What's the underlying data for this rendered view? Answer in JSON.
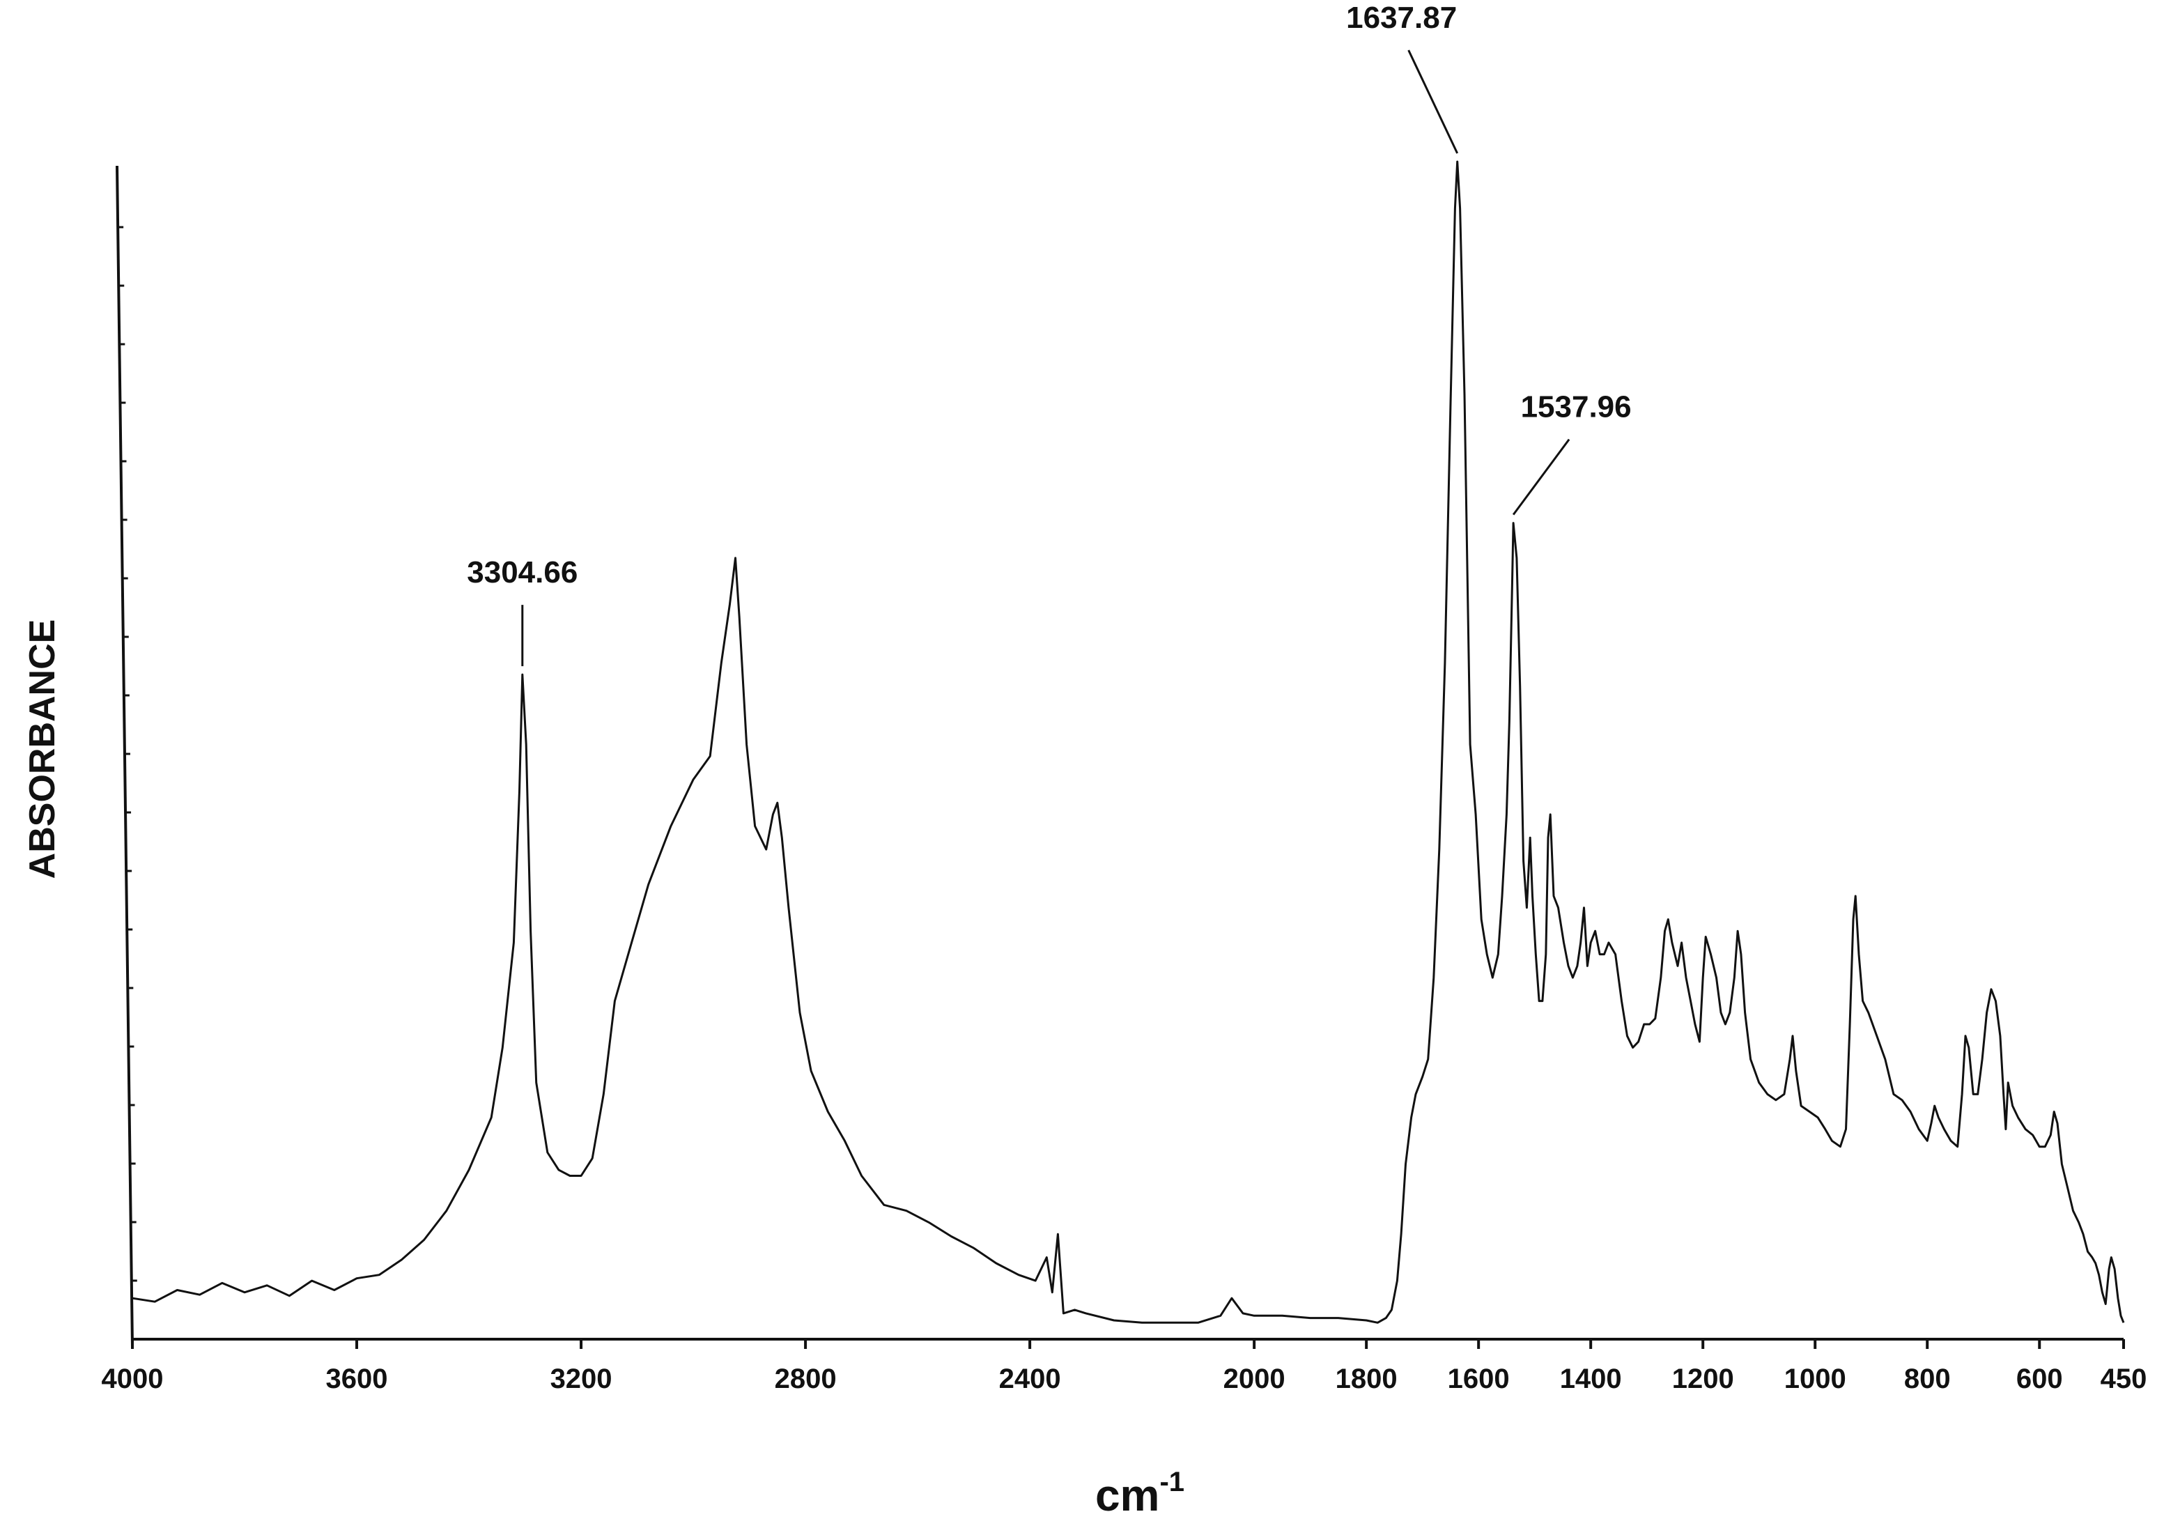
{
  "chart_data": {
    "type": "line",
    "title": "",
    "xlabel": "cm",
    "xlabel_superscript": "-1",
    "ylabel": "ABSORBANCE",
    "xlim": [
      4000,
      450
    ],
    "x_reversed": true,
    "ylim": [
      0,
      1
    ],
    "grid": false,
    "legend": "none",
    "line_color": "#111111",
    "x_ticks": [
      4000,
      3600,
      3200,
      2800,
      2400,
      2000,
      1800,
      1600,
      1400,
      1200,
      1000,
      800,
      600,
      450
    ],
    "x_tick_labels": [
      "4000",
      "3600",
      "3200",
      "2800",
      "2400",
      "2000",
      "1800",
      "1600",
      "1400",
      "1200",
      "1000",
      "800",
      "600",
      "450"
    ],
    "annotations": [
      {
        "text": "3304.66",
        "x": 3304.66,
        "y": 0.56
      },
      {
        "text": "1637.87",
        "x": 1637.87,
        "y": 1.0
      },
      {
        "text": "1537.96",
        "x": 1537.96,
        "y": 0.69
      }
    ],
    "series": [
      {
        "values": [
          [
            4000,
            0.025
          ],
          [
            3960,
            0.022
          ],
          [
            3920,
            0.032
          ],
          [
            3880,
            0.028
          ],
          [
            3840,
            0.038
          ],
          [
            3800,
            0.03
          ],
          [
            3760,
            0.036
          ],
          [
            3720,
            0.027
          ],
          [
            3680,
            0.04
          ],
          [
            3640,
            0.032
          ],
          [
            3600,
            0.042
          ],
          [
            3560,
            0.045
          ],
          [
            3520,
            0.058
          ],
          [
            3480,
            0.075
          ],
          [
            3440,
            0.1
          ],
          [
            3400,
            0.135
          ],
          [
            3360,
            0.18
          ],
          [
            3340,
            0.24
          ],
          [
            3320,
            0.33
          ],
          [
            3310,
            0.46
          ],
          [
            3304.66,
            0.56
          ],
          [
            3298,
            0.5
          ],
          [
            3290,
            0.34
          ],
          [
            3280,
            0.21
          ],
          [
            3260,
            0.15
          ],
          [
            3240,
            0.135
          ],
          [
            3220,
            0.13
          ],
          [
            3200,
            0.13
          ],
          [
            3180,
            0.145
          ],
          [
            3160,
            0.2
          ],
          [
            3140,
            0.28
          ],
          [
            3110,
            0.33
          ],
          [
            3080,
            0.38
          ],
          [
            3040,
            0.43
          ],
          [
            3000,
            0.47
          ],
          [
            2970,
            0.49
          ],
          [
            2950,
            0.57
          ],
          [
            2935,
            0.62
          ],
          [
            2925,
            0.66
          ],
          [
            2918,
            0.61
          ],
          [
            2905,
            0.5
          ],
          [
            2890,
            0.43
          ],
          [
            2870,
            0.41
          ],
          [
            2858,
            0.44
          ],
          [
            2850,
            0.45
          ],
          [
            2842,
            0.42
          ],
          [
            2830,
            0.36
          ],
          [
            2810,
            0.27
          ],
          [
            2790,
            0.22
          ],
          [
            2760,
            0.185
          ],
          [
            2730,
            0.16
          ],
          [
            2700,
            0.13
          ],
          [
            2660,
            0.105
          ],
          [
            2620,
            0.1
          ],
          [
            2580,
            0.09
          ],
          [
            2540,
            0.078
          ],
          [
            2500,
            0.068
          ],
          [
            2460,
            0.055
          ],
          [
            2420,
            0.045
          ],
          [
            2390,
            0.04
          ],
          [
            2370,
            0.06
          ],
          [
            2360,
            0.03
          ],
          [
            2350,
            0.08
          ],
          [
            2340,
            0.012
          ],
          [
            2320,
            0.015
          ],
          [
            2300,
            0.012
          ],
          [
            2250,
            0.006
          ],
          [
            2200,
            0.004
          ],
          [
            2150,
            0.004
          ],
          [
            2100,
            0.004
          ],
          [
            2060,
            0.01
          ],
          [
            2040,
            0.025
          ],
          [
            2020,
            0.012
          ],
          [
            2000,
            0.01
          ],
          [
            1950,
            0.01
          ],
          [
            1900,
            0.008
          ],
          [
            1850,
            0.008
          ],
          [
            1800,
            0.006
          ],
          [
            1780,
            0.004
          ],
          [
            1765,
            0.008
          ],
          [
            1755,
            0.015
          ],
          [
            1745,
            0.04
          ],
          [
            1738,
            0.08
          ],
          [
            1730,
            0.14
          ],
          [
            1720,
            0.18
          ],
          [
            1712,
            0.2
          ],
          [
            1700,
            0.215
          ],
          [
            1690,
            0.23
          ],
          [
            1680,
            0.3
          ],
          [
            1670,
            0.41
          ],
          [
            1660,
            0.57
          ],
          [
            1650,
            0.79
          ],
          [
            1642,
            0.96
          ],
          [
            1637.87,
            1.0
          ],
          [
            1633,
            0.96
          ],
          [
            1625,
            0.8
          ],
          [
            1615,
            0.5
          ],
          [
            1605,
            0.44
          ],
          [
            1595,
            0.35
          ],
          [
            1585,
            0.32
          ],
          [
            1575,
            0.3
          ],
          [
            1565,
            0.32
          ],
          [
            1558,
            0.37
          ],
          [
            1550,
            0.44
          ],
          [
            1545,
            0.52
          ],
          [
            1540,
            0.64
          ],
          [
            1537.96,
            0.69
          ],
          [
            1532,
            0.66
          ],
          [
            1526,
            0.55
          ],
          [
            1520,
            0.4
          ],
          [
            1514,
            0.36
          ],
          [
            1508,
            0.42
          ],
          [
            1504,
            0.37
          ],
          [
            1498,
            0.32
          ],
          [
            1492,
            0.28
          ],
          [
            1486,
            0.28
          ],
          [
            1480,
            0.32
          ],
          [
            1476,
            0.42
          ],
          [
            1472,
            0.44
          ],
          [
            1466,
            0.37
          ],
          [
            1458,
            0.36
          ],
          [
            1448,
            0.33
          ],
          [
            1440,
            0.31
          ],
          [
            1432,
            0.3
          ],
          [
            1424,
            0.31
          ],
          [
            1418,
            0.33
          ],
          [
            1412,
            0.36
          ],
          [
            1406,
            0.31
          ],
          [
            1400,
            0.33
          ],
          [
            1392,
            0.34
          ],
          [
            1384,
            0.32
          ],
          [
            1376,
            0.32
          ],
          [
            1368,
            0.33
          ],
          [
            1356,
            0.32
          ],
          [
            1345,
            0.28
          ],
          [
            1335,
            0.25
          ],
          [
            1325,
            0.24
          ],
          [
            1315,
            0.245
          ],
          [
            1305,
            0.26
          ],
          [
            1295,
            0.26
          ],
          [
            1285,
            0.265
          ],
          [
            1275,
            0.3
          ],
          [
            1268,
            0.34
          ],
          [
            1262,
            0.35
          ],
          [
            1255,
            0.33
          ],
          [
            1245,
            0.31
          ],
          [
            1238,
            0.33
          ],
          [
            1230,
            0.3
          ],
          [
            1222,
            0.28
          ],
          [
            1214,
            0.26
          ],
          [
            1206,
            0.245
          ],
          [
            1200,
            0.3
          ],
          [
            1195,
            0.335
          ],
          [
            1186,
            0.32
          ],
          [
            1176,
            0.3
          ],
          [
            1168,
            0.27
          ],
          [
            1160,
            0.26
          ],
          [
            1152,
            0.27
          ],
          [
            1144,
            0.3
          ],
          [
            1138,
            0.34
          ],
          [
            1132,
            0.32
          ],
          [
            1125,
            0.27
          ],
          [
            1115,
            0.23
          ],
          [
            1100,
            0.21
          ],
          [
            1085,
            0.2
          ],
          [
            1070,
            0.195
          ],
          [
            1055,
            0.2
          ],
          [
            1045,
            0.23
          ],
          [
            1040,
            0.25
          ],
          [
            1034,
            0.22
          ],
          [
            1025,
            0.19
          ],
          [
            1010,
            0.185
          ],
          [
            995,
            0.18
          ],
          [
            982,
            0.17
          ],
          [
            970,
            0.16
          ],
          [
            955,
            0.155
          ],
          [
            945,
            0.17
          ],
          [
            938,
            0.26
          ],
          [
            932,
            0.35
          ],
          [
            928,
            0.37
          ],
          [
            922,
            0.32
          ],
          [
            915,
            0.28
          ],
          [
            905,
            0.27
          ],
          [
            890,
            0.25
          ],
          [
            875,
            0.23
          ],
          [
            860,
            0.2
          ],
          [
            845,
            0.195
          ],
          [
            830,
            0.185
          ],
          [
            815,
            0.17
          ],
          [
            800,
            0.16
          ],
          [
            793,
            0.175
          ],
          [
            787,
            0.19
          ],
          [
            780,
            0.18
          ],
          [
            770,
            0.17
          ],
          [
            758,
            0.16
          ],
          [
            746,
            0.155
          ],
          [
            738,
            0.2
          ],
          [
            732,
            0.25
          ],
          [
            726,
            0.24
          ],
          [
            718,
            0.2
          ],
          [
            710,
            0.2
          ],
          [
            702,
            0.23
          ],
          [
            694,
            0.27
          ],
          [
            686,
            0.29
          ],
          [
            678,
            0.28
          ],
          [
            670,
            0.25
          ],
          [
            664,
            0.2
          ],
          [
            660,
            0.17
          ],
          [
            656,
            0.21
          ],
          [
            648,
            0.19
          ],
          [
            638,
            0.18
          ],
          [
            625,
            0.17
          ],
          [
            612,
            0.165
          ],
          [
            600,
            0.155
          ],
          [
            590,
            0.155
          ],
          [
            580,
            0.165
          ],
          [
            574,
            0.185
          ],
          [
            568,
            0.175
          ],
          [
            560,
            0.14
          ],
          [
            550,
            0.12
          ],
          [
            540,
            0.1
          ],
          [
            530,
            0.09
          ],
          [
            522,
            0.08
          ],
          [
            514,
            0.065
          ],
          [
            506,
            0.06
          ],
          [
            500,
            0.055
          ],
          [
            494,
            0.045
          ],
          [
            488,
            0.03
          ],
          [
            482,
            0.02
          ],
          [
            476,
            0.05
          ],
          [
            472,
            0.06
          ],
          [
            466,
            0.05
          ],
          [
            460,
            0.025
          ],
          [
            455,
            0.01
          ],
          [
            450,
            0.004
          ]
        ]
      }
    ]
  }
}
